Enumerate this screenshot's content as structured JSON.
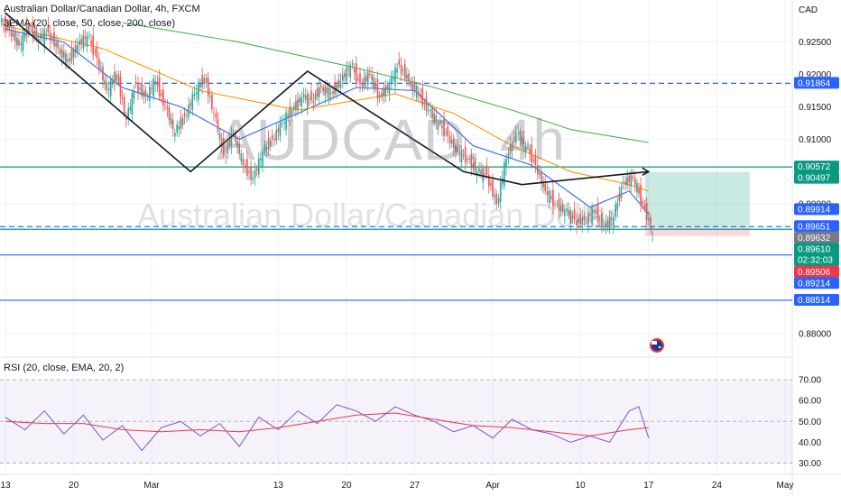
{
  "header": {
    "symbol_line": "Australian Dollar/Canadian Dollar, 4h, FXCM",
    "indicator_line": "3EMA (20, close, 50, close, 200, close)",
    "currency": "CAD"
  },
  "watermark": {
    "symbol": "AUDCAD, 4h",
    "name": "Australian Dollar/Canadian Dollar"
  },
  "rsi": {
    "label": "RSI (20, close, EMA, 20, 2)",
    "levels": [
      70,
      60,
      50,
      40,
      30
    ],
    "level_labels": [
      "70.00",
      "60.00",
      "50.00",
      "40.00",
      "30.00"
    ]
  },
  "colors": {
    "bull": "#26a69a",
    "bear": "#ef5350",
    "blue": "#2962ff",
    "green_line": "#089981",
    "ema20": "#2962ff",
    "ema50": "#ff9800",
    "ema200": "#4caf50",
    "rsi_line": "#7e57c2",
    "rsi_ma": "#f23645"
  },
  "chart_data": {
    "type": "candlestick",
    "y_axis": {
      "range": [
        0.8765,
        0.9315
      ],
      "tick_labels": [
        "0.92500",
        "0.92000",
        "0.91500",
        "0.91000",
        "0.90000",
        "0.88000"
      ],
      "tick_values": [
        0.925,
        0.92,
        0.915,
        0.91,
        0.9,
        0.88
      ]
    },
    "x_axis": {
      "tick_labels": [
        "13",
        "20",
        "Mar",
        "13",
        "20",
        "27",
        "Apr",
        "10",
        "17",
        "24",
        "May"
      ],
      "tick_positions": [
        0,
        7,
        15,
        28,
        35,
        42,
        50,
        59,
        66,
        73,
        80
      ]
    },
    "close_series": [
      {
        "day": 0,
        "close": 0.927
      },
      {
        "day": 1,
        "close": 0.9245
      },
      {
        "day": 2,
        "close": 0.9275
      },
      {
        "day": 3,
        "close": 0.9255
      },
      {
        "day": 4,
        "close": 0.9265
      },
      {
        "day": 5,
        "close": 0.924
      },
      {
        "day": 6,
        "close": 0.922
      },
      {
        "day": 7,
        "close": 0.9245
      },
      {
        "day": 8,
        "close": 0.926
      },
      {
        "day": 9,
        "close": 0.9225
      },
      {
        "day": 10,
        "close": 0.9175
      },
      {
        "day": 11,
        "close": 0.92
      },
      {
        "day": 12,
        "close": 0.913
      },
      {
        "day": 13,
        "close": 0.9185
      },
      {
        "day": 14,
        "close": 0.9165
      },
      {
        "day": 15,
        "close": 0.919
      },
      {
        "day": 16,
        "close": 0.915
      },
      {
        "day": 17,
        "close": 0.911
      },
      {
        "day": 18,
        "close": 0.9135
      },
      {
        "day": 19,
        "close": 0.917
      },
      {
        "day": 20,
        "close": 0.9195
      },
      {
        "day": 21,
        "close": 0.914
      },
      {
        "day": 22,
        "close": 0.9075
      },
      {
        "day": 23,
        "close": 0.911
      },
      {
        "day": 24,
        "close": 0.906
      },
      {
        "day": 25,
        "close": 0.904
      },
      {
        "day": 26,
        "close": 0.908
      },
      {
        "day": 27,
        "close": 0.91
      },
      {
        "day": 28,
        "close": 0.9125
      },
      {
        "day": 29,
        "close": 0.9145
      },
      {
        "day": 30,
        "close": 0.9165
      },
      {
        "day": 31,
        "close": 0.916
      },
      {
        "day": 32,
        "close": 0.918
      },
      {
        "day": 33,
        "close": 0.917
      },
      {
        "day": 34,
        "close": 0.919
      },
      {
        "day": 35,
        "close": 0.9215
      },
      {
        "day": 36,
        "close": 0.9185
      },
      {
        "day": 37,
        "close": 0.92
      },
      {
        "day": 38,
        "close": 0.9165
      },
      {
        "day": 39,
        "close": 0.9185
      },
      {
        "day": 40,
        "close": 0.9215
      },
      {
        "day": 41,
        "close": 0.919
      },
      {
        "day": 42,
        "close": 0.917
      },
      {
        "day": 43,
        "close": 0.9145
      },
      {
        "day": 44,
        "close": 0.9125
      },
      {
        "day": 45,
        "close": 0.9105
      },
      {
        "day": 46,
        "close": 0.908
      },
      {
        "day": 47,
        "close": 0.907
      },
      {
        "day": 48,
        "close": 0.905
      },
      {
        "day": 49,
        "close": 0.9045
      },
      {
        "day": 50,
        "close": 0.9
      },
      {
        "day": 51,
        "close": 0.907
      },
      {
        "day": 52,
        "close": 0.911
      },
      {
        "day": 53,
        "close": 0.909
      },
      {
        "day": 54,
        "close": 0.906
      },
      {
        "day": 55,
        "close": 0.902
      },
      {
        "day": 56,
        "close": 0.9
      },
      {
        "day": 57,
        "close": 0.899
      },
      {
        "day": 58,
        "close": 0.8975
      },
      {
        "day": 59,
        "close": 0.8975
      },
      {
        "day": 60,
        "close": 0.899
      },
      {
        "day": 61,
        "close": 0.8965
      },
      {
        "day": 62,
        "close": 0.898
      },
      {
        "day": 63,
        "close": 0.9035
      },
      {
        "day": 64,
        "close": 0.904
      },
      {
        "day": 65,
        "close": 0.9
      },
      {
        "day": 66,
        "close": 0.8955
      }
    ],
    "ema_lines": [
      {
        "name": "EMA 20",
        "color": "#2962ff",
        "points": [
          [
            0,
            0.927
          ],
          [
            6,
            0.925
          ],
          [
            12,
            0.918
          ],
          [
            18,
            0.915
          ],
          [
            24,
            0.91
          ],
          [
            30,
            0.914
          ],
          [
            36,
            0.918
          ],
          [
            42,
            0.9175
          ],
          [
            48,
            0.909
          ],
          [
            54,
            0.906
          ],
          [
            60,
            0.8995
          ],
          [
            64,
            0.902
          ],
          [
            66,
            0.8985
          ]
        ]
      },
      {
        "name": "EMA 50",
        "color": "#ff9800",
        "points": [
          [
            0,
            0.9275
          ],
          [
            10,
            0.924
          ],
          [
            20,
            0.9175
          ],
          [
            30,
            0.9145
          ],
          [
            40,
            0.917
          ],
          [
            46,
            0.914
          ],
          [
            52,
            0.909
          ],
          [
            58,
            0.905
          ],
          [
            64,
            0.903
          ],
          [
            66,
            0.902
          ]
        ]
      },
      {
        "name": "EMA 200",
        "color": "#4caf50",
        "points": [
          [
            12,
            0.928
          ],
          [
            24,
            0.925
          ],
          [
            36,
            0.921
          ],
          [
            44,
            0.918
          ],
          [
            52,
            0.9145
          ],
          [
            58,
            0.9115
          ],
          [
            64,
            0.91
          ],
          [
            66,
            0.9095
          ]
        ]
      }
    ],
    "horizontal_lines": [
      {
        "value": 0.91864,
        "label": "0.91864",
        "style": "dashed",
        "color": "#2962ff"
      },
      {
        "value": 0.90572,
        "label": "0.90572",
        "style": "solid",
        "color": "#089981"
      },
      {
        "value": 0.89651,
        "label": "0.89651",
        "style": "dashed",
        "color": "#2962ff"
      },
      {
        "value": 0.8961,
        "label": "0.89610",
        "style": "solid",
        "color": "#089981"
      },
      {
        "value": 0.89214,
        "label": "0.89214",
        "style": "solid",
        "color": "#2962ff"
      },
      {
        "value": 0.88514,
        "label": "0.88514",
        "style": "solid",
        "color": "#2962ff"
      }
    ],
    "price_badges": [
      {
        "label": "0.91864",
        "value": 0.91864,
        "bg": "#2962ff"
      },
      {
        "label": "0.90572",
        "value": 0.90572,
        "bg": "#089981"
      },
      {
        "label": "0.90497",
        "value": 0.90497,
        "bg": "#089981"
      },
      {
        "label": "0.89914",
        "value": 0.89914,
        "bg": "#2962ff"
      },
      {
        "label": "0.89651",
        "value": 0.89651,
        "bg": "#2962ff"
      },
      {
        "label": "0.89632",
        "value": 0.89632,
        "bg": "#787b86"
      },
      {
        "label": "0.89610",
        "value": 0.8961,
        "bg": "#089981",
        "sub": "02:32:03"
      },
      {
        "label": "0.89506",
        "value": 0.89506,
        "bg": "#f23645"
      },
      {
        "label": "0.89214",
        "value": 0.89214,
        "bg": "#2962ff"
      },
      {
        "label": "0.88514",
        "value": 0.88514,
        "bg": "#2962ff"
      }
    ],
    "position": {
      "entry": 0.89632,
      "target": 0.90497,
      "stop": 0.89506,
      "start_day": 66,
      "end_day": 76
    },
    "trendline": [
      [
        0,
        0.9295
      ],
      [
        19,
        0.905
      ],
      [
        31,
        0.9205
      ],
      [
        47,
        0.905
      ],
      [
        53,
        0.903
      ],
      [
        66,
        0.905
      ]
    ],
    "rsi_series": [
      [
        0,
        52
      ],
      [
        2,
        46
      ],
      [
        4,
        55
      ],
      [
        6,
        44
      ],
      [
        8,
        53
      ],
      [
        10,
        41
      ],
      [
        12,
        48
      ],
      [
        14,
        36
      ],
      [
        16,
        47
      ],
      [
        18,
        50
      ],
      [
        20,
        43
      ],
      [
        22,
        49
      ],
      [
        24,
        38
      ],
      [
        26,
        52
      ],
      [
        28,
        46
      ],
      [
        30,
        55
      ],
      [
        32,
        49
      ],
      [
        34,
        58
      ],
      [
        36,
        55
      ],
      [
        38,
        50
      ],
      [
        40,
        57
      ],
      [
        42,
        53
      ],
      [
        44,
        50
      ],
      [
        46,
        45
      ],
      [
        48,
        48
      ],
      [
        50,
        42
      ],
      [
        52,
        51
      ],
      [
        54,
        46
      ],
      [
        56,
        44
      ],
      [
        58,
        40
      ],
      [
        60,
        43
      ],
      [
        62,
        40
      ],
      [
        64,
        55
      ],
      [
        65,
        57
      ],
      [
        66,
        42
      ]
    ],
    "rsi_ma_series": [
      [
        0,
        50
      ],
      [
        4,
        49
      ],
      [
        8,
        49
      ],
      [
        12,
        46
      ],
      [
        16,
        45
      ],
      [
        20,
        46
      ],
      [
        24,
        45
      ],
      [
        28,
        47
      ],
      [
        32,
        50
      ],
      [
        36,
        53
      ],
      [
        40,
        54
      ],
      [
        44,
        51
      ],
      [
        48,
        48
      ],
      [
        52,
        47
      ],
      [
        56,
        45
      ],
      [
        60,
        43
      ],
      [
        64,
        46
      ],
      [
        66,
        47
      ]
    ]
  }
}
